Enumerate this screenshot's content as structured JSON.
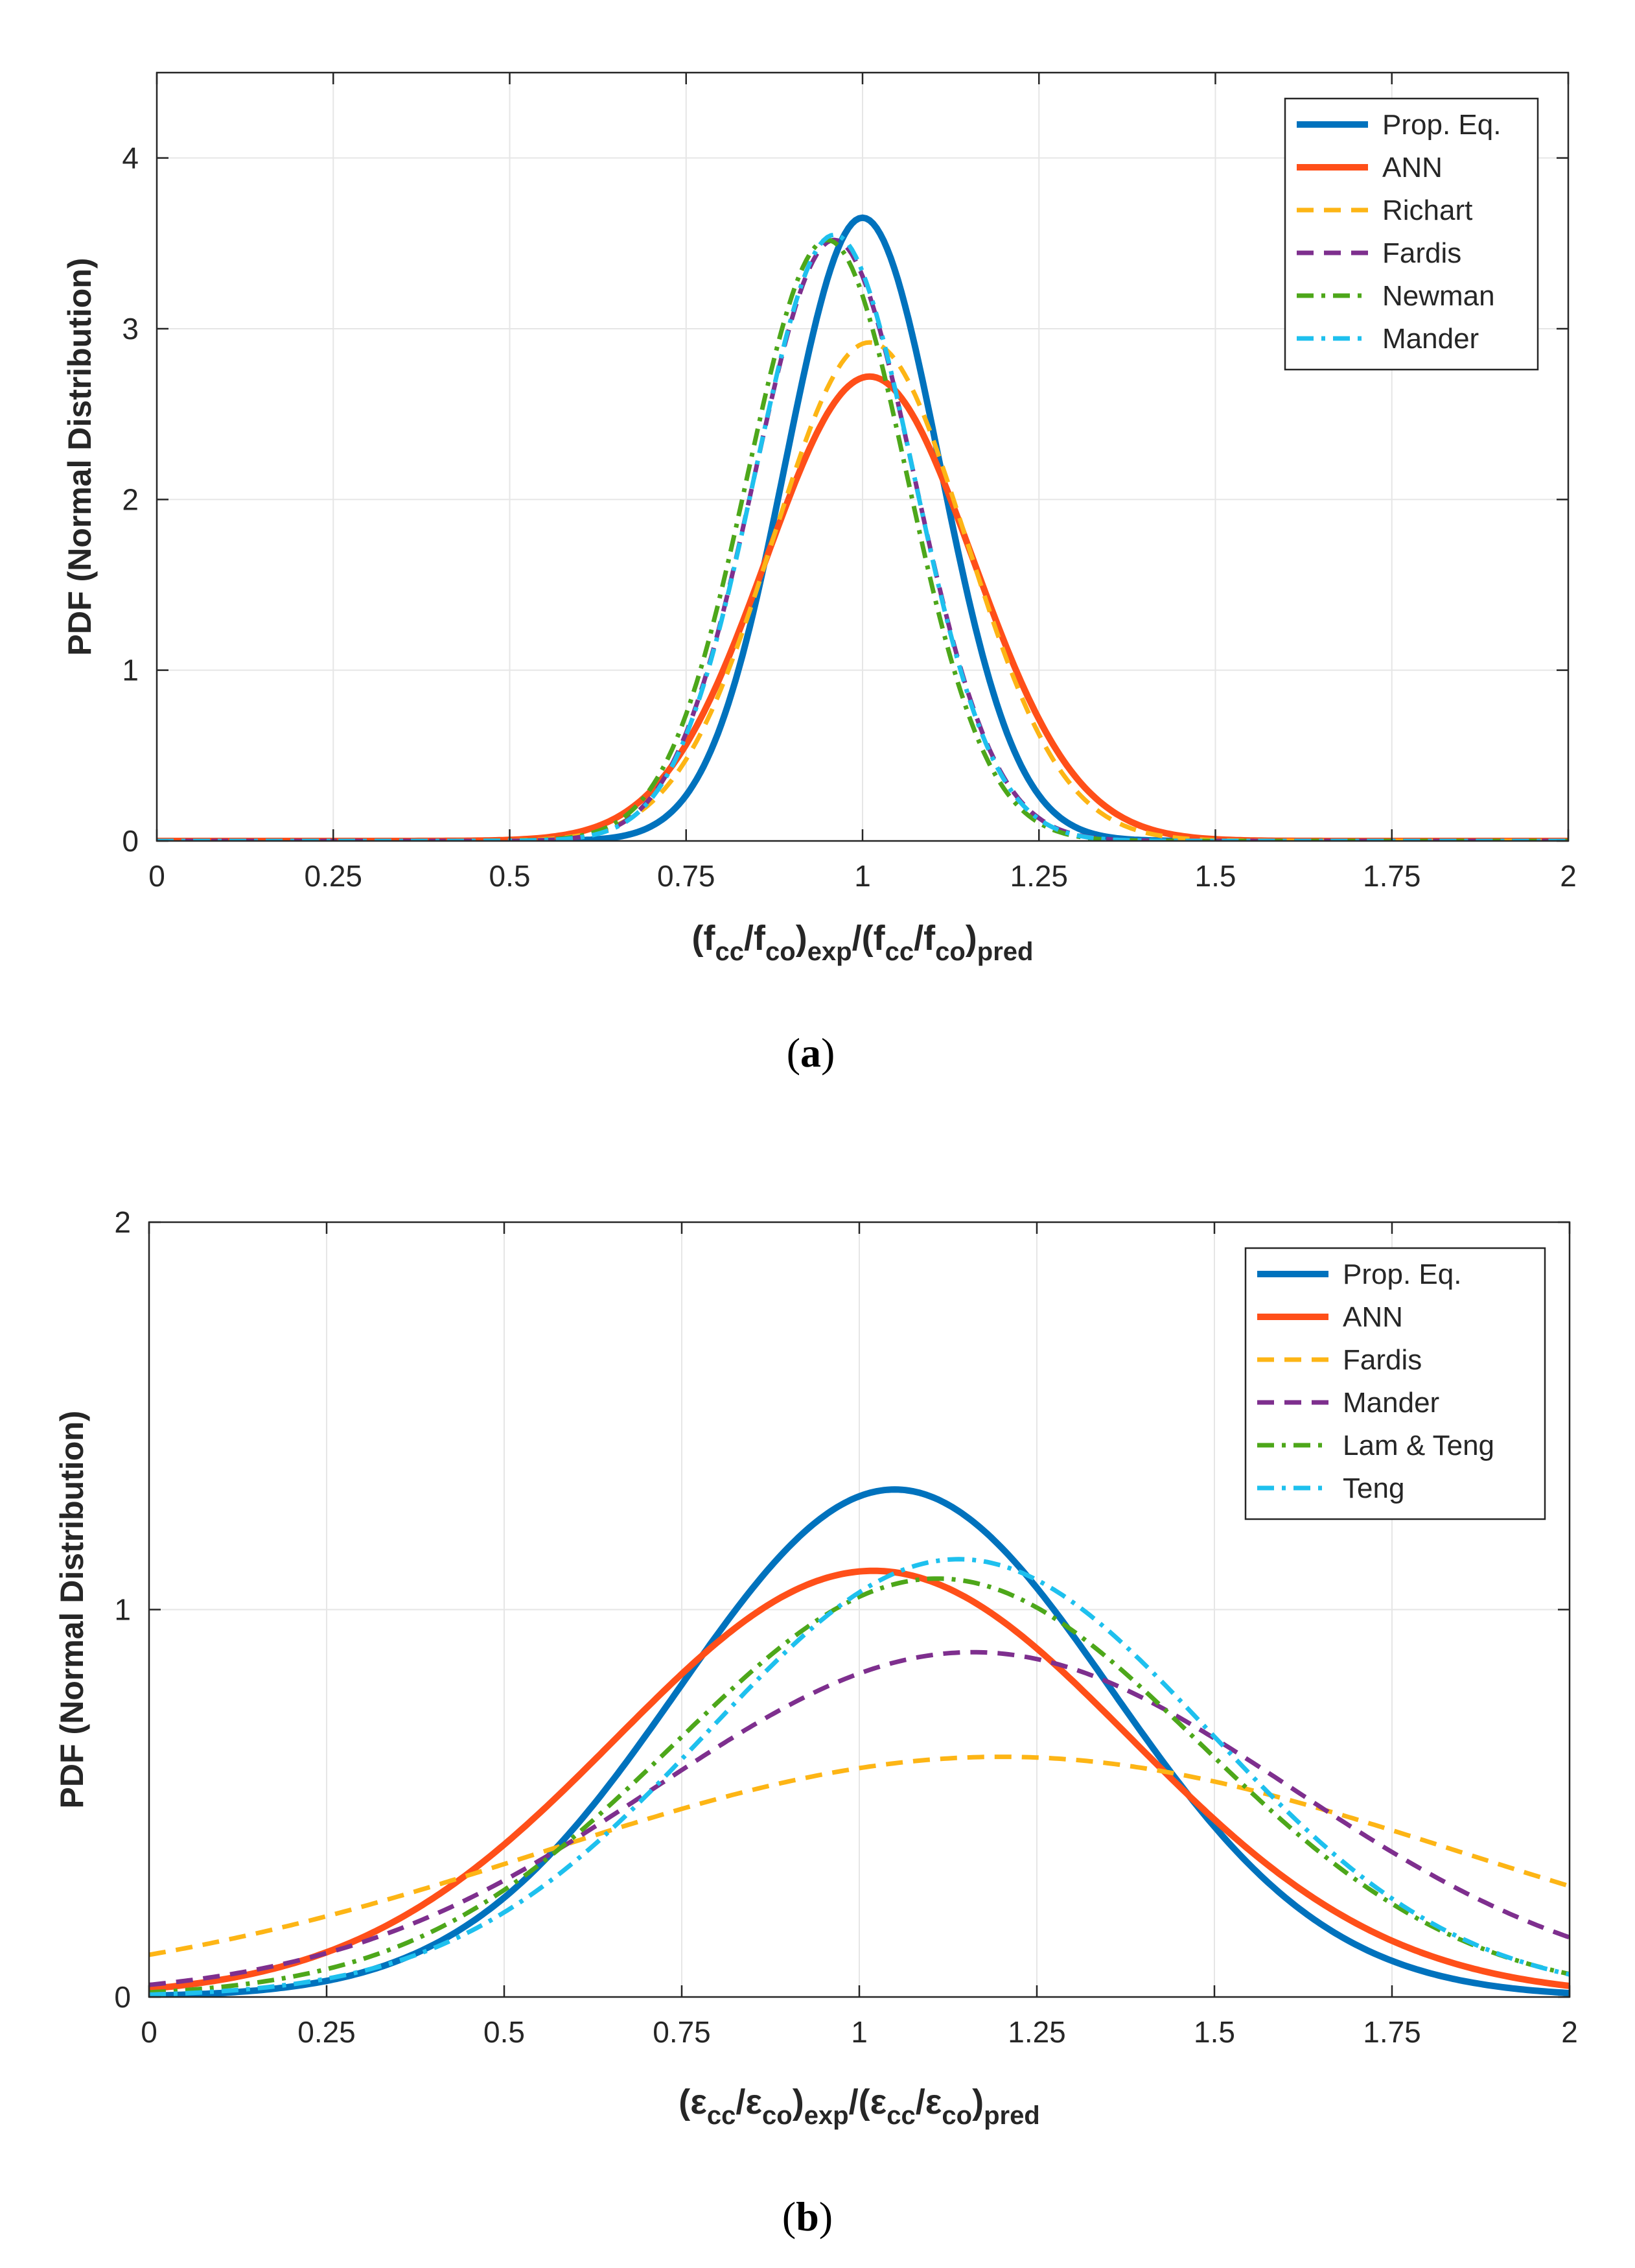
{
  "chart_data": [
    {
      "type": "line",
      "panel_label": "a",
      "xlabel": {
        "base": "(f",
        "sub1": "cc",
        "mid1": "/f",
        "sub2": "co",
        "mid2": ")",
        "sub3": "exp",
        "mid3": "/(f",
        "sub4": "cc",
        "mid4": "/f",
        "sub5": "co",
        "mid5": ")",
        "sub6": "pred"
      },
      "ylabel": "PDF (Normal Distribution)",
      "xlim": [
        0,
        2
      ],
      "ylim": [
        0,
        4.5
      ],
      "xticks": [
        "0",
        "0.25",
        "0.5",
        "0.75",
        "1",
        "1.25",
        "1.5",
        "1.75",
        "2"
      ],
      "xtick_values": [
        0,
        0.25,
        0.5,
        0.75,
        1,
        1.25,
        1.5,
        1.75,
        2
      ],
      "yticks": [
        "0",
        "1",
        "2",
        "3",
        "4"
      ],
      "ytick_values": [
        0,
        1,
        2,
        3,
        4
      ],
      "grid": true,
      "legend_position": "top-right",
      "series": [
        {
          "name": "Prop. Eq.",
          "mean": 1.0,
          "peak": 3.65,
          "color": "#0072BD",
          "dash": "solid"
        },
        {
          "name": "ANN",
          "mean": 1.01,
          "peak": 2.72,
          "color": "#FF4F19",
          "dash": "solid"
        },
        {
          "name": "Richart",
          "mean": 1.01,
          "peak": 2.92,
          "color": "#FDB515",
          "dash": "dashed"
        },
        {
          "name": "Fardis",
          "mean": 0.96,
          "peak": 3.52,
          "color": "#7E2F8E",
          "dash": "dashed"
        },
        {
          "name": "Newman",
          "mean": 0.95,
          "peak": 3.52,
          "color": "#4DA71A",
          "dash": "dashdot"
        },
        {
          "name": "Mander",
          "mean": 0.96,
          "peak": 3.55,
          "color": "#1EC0EE",
          "dash": "dashdot"
        }
      ]
    },
    {
      "type": "line",
      "panel_label": "b",
      "xlabel": {
        "base": "(ε",
        "sub1": "cc",
        "mid1": "/ε",
        "sub2": "co",
        "mid2": ")",
        "sub3": "exp",
        "mid3": "/(ε",
        "sub4": "cc",
        "mid4": "/ε",
        "sub5": "co",
        "mid5": ")",
        "sub6": "pred"
      },
      "ylabel": "PDF (Normal Distribution)",
      "xlim": [
        0,
        2
      ],
      "ylim": [
        0,
        2
      ],
      "xticks": [
        "0",
        "0.25",
        "0.5",
        "0.75",
        "1",
        "1.25",
        "1.5",
        "1.75",
        "2"
      ],
      "xtick_values": [
        0,
        0.25,
        0.5,
        0.75,
        1,
        1.25,
        1.5,
        1.75,
        2
      ],
      "yticks": [
        "0",
        "1",
        "2"
      ],
      "ytick_values": [
        0,
        1,
        2
      ],
      "grid": true,
      "legend_position": "top-right",
      "series": [
        {
          "name": "Prop. Eq.",
          "mean": 1.05,
          "peak": 1.31,
          "color": "#0072BD",
          "dash": "solid"
        },
        {
          "name": "ANN",
          "mean": 1.02,
          "peak": 1.1,
          "color": "#FF4F19",
          "dash": "solid"
        },
        {
          "name": "Fardis",
          "mean": 1.2,
          "peak": 0.62,
          "color": "#FDB515",
          "dash": "dashed"
        },
        {
          "name": "Mander",
          "mean": 1.16,
          "peak": 0.89,
          "color": "#7E2F8E",
          "dash": "dashed"
        },
        {
          "name": "Lam & Teng",
          "mean": 1.11,
          "peak": 1.08,
          "color": "#4DA71A",
          "dash": "dashdot"
        },
        {
          "name": "Teng",
          "mean": 1.14,
          "peak": 1.13,
          "color": "#1EC0EE",
          "dash": "dashdot"
        }
      ]
    }
  ]
}
